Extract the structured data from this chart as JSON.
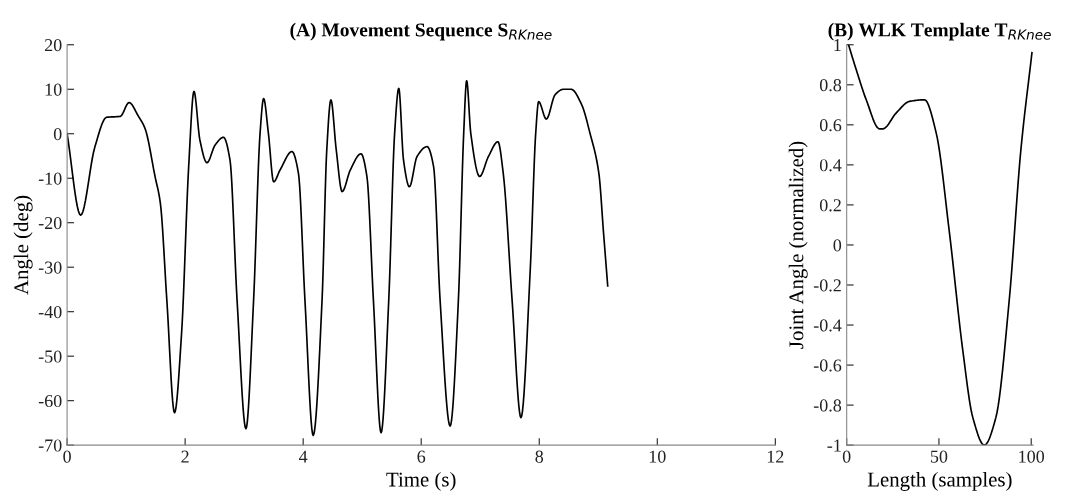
{
  "chart_data": [
    {
      "type": "line",
      "title": "(A) Movement Sequence S$_{RKnee}$",
      "xlabel": "Time (s)",
      "ylabel": "Angle (deg)",
      "xlim": [
        0,
        12
      ],
      "xticks": [
        0,
        2,
        4,
        6,
        8,
        10,
        12
      ],
      "ylim": [
        -70,
        20
      ],
      "yticks": [
        -70,
        -60,
        -50,
        -40,
        -30,
        -20,
        -10,
        0,
        10,
        20
      ],
      "marker": "none",
      "line_style": "solid",
      "series": [
        {
          "color": "#000000",
          "x": [
            0,
            0.23,
            0.47,
            0.67,
            0.9,
            1.05,
            1.21,
            1.32,
            1.49,
            1.58,
            1.69,
            1.82,
            1.94,
            2.06,
            2.15,
            2.25,
            2.37,
            2.51,
            2.65,
            2.76,
            2.88,
            3.03,
            3.16,
            3.27,
            3.33,
            3.41,
            3.5,
            3.61,
            3.81,
            3.92,
            4.03,
            4.17,
            4.32,
            4.4,
            4.47,
            4.56,
            4.66,
            4.8,
            4.98,
            5.08,
            5.19,
            5.32,
            5.45,
            5.55,
            5.62,
            5.7,
            5.8,
            5.93,
            6.1,
            6.21,
            6.32,
            6.49,
            6.63,
            6.72,
            6.77,
            6.84,
            6.99,
            7.14,
            7.3,
            7.39,
            7.54,
            7.69,
            7.85,
            7.94,
            7.99,
            8.12,
            8.27,
            8.41,
            8.54,
            8.72,
            8.86,
            9.01,
            9.09,
            9.16
          ],
          "values": [
            0,
            -18.3,
            -3,
            3.7,
            3.9,
            7,
            3.9,
            1.2,
            -9.6,
            -15.6,
            -37.4,
            -62.7,
            -44.8,
            -7.4,
            9.5,
            -1.4,
            -6.5,
            -2.5,
            -0.8,
            -5.9,
            -37.4,
            -66.3,
            -37.4,
            0.2,
            7.9,
            0.2,
            -10.8,
            -8.1,
            -4,
            -8.9,
            -37.4,
            -67.8,
            -37.4,
            -3.6,
            7.6,
            -3.6,
            -13,
            -8.1,
            -4.5,
            -9.6,
            -37.4,
            -67.2,
            -37.4,
            0.2,
            10.2,
            -5.9,
            -11.9,
            -5.1,
            -2.9,
            -7.4,
            -37.4,
            -65.7,
            -37.4,
            0.1,
            11.9,
            0.1,
            -9.6,
            -5.1,
            -1.8,
            -8.9,
            -37.4,
            -63.8,
            -29.9,
            0.1,
            7.2,
            3.3,
            8.8,
            10,
            10,
            6.5,
            0.1,
            -8.9,
            -22.4,
            -34.2
          ]
        }
      ]
    },
    {
      "type": "line",
      "title": "(B) WLK Template T$_{RKnee}$",
      "xlabel": "Length (samples)",
      "ylabel": "Joint Angle (normalized)",
      "xlim": [
        0,
        101
      ],
      "xticks": [
        0,
        50,
        100
      ],
      "ylim": [
        -1,
        1
      ],
      "yticks": [
        -1,
        -0.8,
        -0.6,
        -0.4,
        -0.2,
        0,
        0.2,
        0.4,
        0.6,
        0.8,
        1
      ],
      "marker": "none",
      "line_style": "solid",
      "series": [
        {
          "color": "#000000",
          "x": [
            1,
            5.2,
            10.6,
            17.8,
            19.6,
            26.9,
            34,
            42.2,
            48.5,
            55.7,
            62.9,
            68.3,
            74.6,
            80.9,
            88.1,
            94.4,
            100.4
          ],
          "values": [
            1,
            0.875,
            0.725,
            0.58,
            0.58,
            0.66,
            0.717,
            0.725,
            0.56,
            0.06,
            -0.525,
            -0.86,
            -1,
            -0.86,
            -0.275,
            0.475,
            0.96
          ]
        }
      ]
    }
  ]
}
